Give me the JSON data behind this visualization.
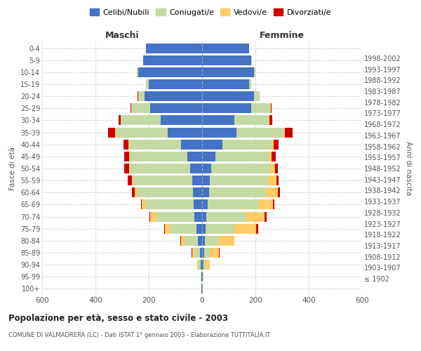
{
  "age_groups": [
    "100+",
    "95-99",
    "90-94",
    "85-89",
    "80-84",
    "75-79",
    "70-74",
    "65-69",
    "60-64",
    "55-59",
    "50-54",
    "45-49",
    "40-44",
    "35-39",
    "30-34",
    "25-29",
    "20-24",
    "15-19",
    "10-14",
    "5-9",
    "0-4"
  ],
  "birth_years": [
    "≤ 1902",
    "1903-1907",
    "1908-1912",
    "1913-1917",
    "1918-1922",
    "1923-1927",
    "1928-1932",
    "1933-1937",
    "1938-1942",
    "1943-1947",
    "1948-1952",
    "1953-1957",
    "1958-1962",
    "1963-1967",
    "1968-1972",
    "1973-1977",
    "1978-1982",
    "1983-1987",
    "1988-1992",
    "1993-1997",
    "1998-2002"
  ],
  "maschi_celibe": [
    2,
    2,
    5,
    8,
    15,
    20,
    30,
    32,
    35,
    38,
    45,
    55,
    80,
    130,
    155,
    195,
    215,
    200,
    240,
    220,
    210
  ],
  "maschi_coniugato": [
    1,
    2,
    10,
    20,
    50,
    100,
    140,
    180,
    210,
    220,
    225,
    215,
    195,
    195,
    150,
    70,
    25,
    10,
    5,
    2,
    1
  ],
  "maschi_vedovo": [
    0,
    1,
    3,
    10,
    15,
    20,
    25,
    15,
    8,
    5,
    4,
    3,
    2,
    2,
    1,
    1,
    0,
    0,
    0,
    0,
    0
  ],
  "maschi_divorziato": [
    0,
    0,
    1,
    1,
    1,
    2,
    2,
    3,
    10,
    15,
    18,
    20,
    18,
    25,
    8,
    2,
    1,
    0,
    0,
    0,
    0
  ],
  "femmine_celibe": [
    2,
    2,
    5,
    8,
    10,
    12,
    15,
    20,
    25,
    28,
    35,
    50,
    75,
    130,
    120,
    185,
    195,
    175,
    195,
    185,
    175
  ],
  "femmine_coniugato": [
    1,
    2,
    8,
    20,
    50,
    110,
    150,
    190,
    215,
    220,
    220,
    200,
    185,
    175,
    130,
    70,
    20,
    8,
    5,
    2,
    1
  ],
  "femmine_vedovo": [
    0,
    2,
    15,
    35,
    60,
    80,
    70,
    55,
    45,
    30,
    18,
    10,
    8,
    5,
    3,
    2,
    1,
    0,
    0,
    0,
    0
  ],
  "femmine_divorziato": [
    0,
    0,
    1,
    2,
    2,
    8,
    8,
    6,
    8,
    10,
    12,
    15,
    20,
    30,
    10,
    3,
    1,
    0,
    0,
    0,
    0
  ],
  "colors": {
    "celibe": "#4472C4",
    "coniugato": "#C5D9A4",
    "vedovo": "#FFCC66",
    "divorziato": "#CC0000"
  },
  "xlim": 600,
  "title": "Popolazione per età, sesso e stato civile - 2003",
  "subtitle": "COMUNE DI VALMADRERA (LC) - Dati ISTAT 1° gennaio 2003 - Elaborazione TUTTITALIA.IT",
  "xlabel_left": "Maschi",
  "xlabel_right": "Femmine",
  "ylabel_left": "Fasce di età",
  "ylabel_right": "Anni di nascita",
  "bg_color": "#ffffff",
  "grid_color": "#cccccc"
}
